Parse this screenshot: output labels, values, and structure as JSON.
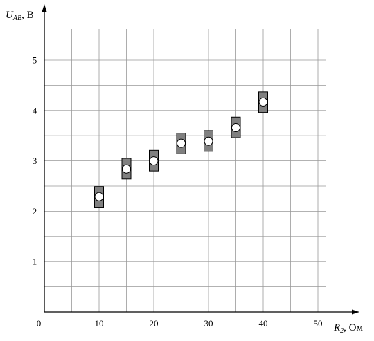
{
  "chart_data": {
    "type": "scatter",
    "title": "",
    "x_axis": {
      "symbol": "R",
      "subscript": "2",
      "unit": ", Ом",
      "range": [
        0,
        55
      ],
      "ticks": [
        0,
        10,
        20,
        30,
        40,
        50
      ],
      "tick_labels": [
        "0",
        "10",
        "20",
        "30",
        "40",
        "50"
      ]
    },
    "y_axis": {
      "symbol": "U",
      "subscript": "AB",
      "unit": ", В",
      "range": [
        0,
        5.8
      ],
      "ticks": [
        1,
        2,
        3,
        4,
        5
      ],
      "tick_labels": [
        "1",
        "2",
        "3",
        "4",
        "5"
      ]
    },
    "grid": {
      "enabled": true,
      "x_step": 5,
      "y_step": 0.5
    },
    "points": [
      {
        "x": 10,
        "y": 2.29,
        "y_low": 2.08,
        "y_high": 2.49
      },
      {
        "x": 15,
        "y": 2.84,
        "y_low": 2.64,
        "y_high": 3.05
      },
      {
        "x": 20,
        "y": 3.0,
        "y_low": 2.8,
        "y_high": 3.21
      },
      {
        "x": 25,
        "y": 3.35,
        "y_low": 3.14,
        "y_high": 3.55
      },
      {
        "x": 30,
        "y": 3.39,
        "y_low": 3.19,
        "y_high": 3.6
      },
      {
        "x": 35,
        "y": 3.66,
        "y_low": 3.46,
        "y_high": 3.87
      },
      {
        "x": 40,
        "y": 4.17,
        "y_low": 3.96,
        "y_high": 4.37
      }
    ],
    "colors": {
      "error_box": "#808080",
      "marker": "#ffffff",
      "grid": "#999999",
      "axis": "#000000"
    }
  }
}
